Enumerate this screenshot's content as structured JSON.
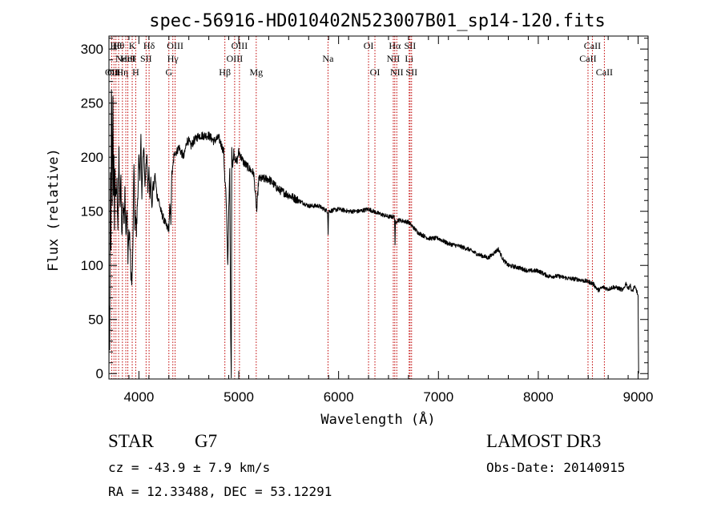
{
  "chart_data": {
    "type": "line",
    "title": "spec-56916-HD010402N523007B01_sp14-120.fits",
    "xlabel": "Wavelength (Å)",
    "ylabel": "Flux (relative)",
    "xlim": [
      3700,
      9100
    ],
    "ylim": [
      -5,
      312
    ],
    "x_ticks": [
      4000,
      5000,
      6000,
      7000,
      8000,
      9000
    ],
    "y_ticks": [
      0,
      50,
      100,
      150,
      200,
      250,
      300
    ],
    "series": [
      {
        "name": "flux",
        "x": [
          3700,
          3703,
          3708,
          3712,
          3716,
          3720,
          3724,
          3728,
          3732,
          3736,
          3740,
          3745,
          3750,
          3755,
          3760,
          3770,
          3780,
          3790,
          3800,
          3810,
          3820,
          3830,
          3840,
          3850,
          3860,
          3870,
          3880,
          3890,
          3900,
          3910,
          3920,
          3930,
          3935,
          3940,
          3945,
          3950,
          3960,
          3968,
          3975,
          3990,
          4000,
          4010,
          4020,
          4030,
          4040,
          4050,
          4060,
          4070,
          4080,
          4090,
          4100,
          4110,
          4120,
          4130,
          4140,
          4150,
          4160,
          4170,
          4180,
          4200,
          4220,
          4240,
          4260,
          4280,
          4300,
          4310,
          4320,
          4330,
          4340,
          4350,
          4360,
          4380,
          4400,
          4420,
          4450,
          4480,
          4500,
          4520,
          4550,
          4600,
          4650,
          4700,
          4750,
          4800,
          4850,
          4860,
          4870,
          4880,
          4890,
          4900,
          4910,
          4920,
          4925,
          4930,
          4940,
          4950,
          4960,
          4980,
          5000,
          5050,
          5100,
          5150,
          5180,
          5200,
          5250,
          5300,
          5400,
          5500,
          5600,
          5700,
          5800,
          5890,
          5895,
          5900,
          6000,
          6100,
          6200,
          6300,
          6400,
          6500,
          6560,
          6565,
          6570,
          6600,
          6700,
          6800,
          6900,
          7000,
          7100,
          7200,
          7300,
          7400,
          7500,
          7600,
          7650,
          7700,
          7800,
          7900,
          8000,
          8100,
          8200,
          8300,
          8400,
          8500,
          8550,
          8600,
          8650,
          8700,
          8750,
          8800,
          8850,
          8880,
          8900,
          8920,
          8940,
          8960,
          8980,
          9000,
          9005
        ],
        "y": [
          0,
          75,
          20,
          130,
          200,
          120,
          265,
          240,
          150,
          215,
          255,
          170,
          195,
          140,
          185,
          160,
          175,
          135,
          205,
          150,
          180,
          125,
          160,
          140,
          170,
          130,
          150,
          110,
          130,
          120,
          95,
          80,
          100,
          110,
          160,
          190,
          140,
          150,
          130,
          170,
          200,
          180,
          220,
          160,
          200,
          210,
          175,
          190,
          200,
          170,
          190,
          165,
          180,
          150,
          175,
          170,
          185,
          175,
          165,
          160,
          150,
          145,
          140,
          135,
          135,
          155,
          140,
          185,
          190,
          200,
          205,
          205,
          210,
          205,
          200,
          215,
          215,
          210,
          215,
          220,
          220,
          220,
          215,
          218,
          205,
          180,
          170,
          140,
          100,
          150,
          190,
          30,
          0,
          210,
          190,
          205,
          200,
          195,
          205,
          195,
          190,
          185,
          150,
          180,
          180,
          180,
          170,
          165,
          160,
          155,
          155,
          150,
          130,
          150,
          152,
          150,
          150,
          152,
          148,
          145,
          145,
          120,
          140,
          142,
          140,
          130,
          125,
          125,
          120,
          118,
          115,
          110,
          107,
          115,
          105,
          100,
          98,
          95,
          95,
          90,
          90,
          88,
          87,
          85,
          83,
          77,
          80,
          78,
          80,
          79,
          77,
          84,
          78,
          82,
          75,
          80,
          78,
          72,
          0
        ]
      }
    ],
    "lines": [
      {
        "x": 3727,
        "label": "OII",
        "row": 2
      },
      {
        "x": 3750,
        "label": "OII",
        "row": 2
      },
      {
        "x": 3770,
        "label": "Hθ",
        "row": 0
      },
      {
        "x": 3797,
        "label": "Hθ",
        "row": 0
      },
      {
        "x": 3835,
        "label": "Hη",
        "row": 2
      },
      {
        "x": 3869,
        "label": "NeIII",
        "row": 1
      },
      {
        "x": 3889,
        "label": "HeI",
        "row": 1
      },
      {
        "x": 3933,
        "label": "K",
        "row": 0
      },
      {
        "x": 3968,
        "label": "H",
        "row": 2
      },
      {
        "x": 4072,
        "label": "SII",
        "row": 1
      },
      {
        "x": 4102,
        "label": "Hδ",
        "row": 0
      },
      {
        "x": 4300,
        "label": "G",
        "row": 2
      },
      {
        "x": 4340,
        "label": "Hγ",
        "row": 1
      },
      {
        "x": 4363,
        "label": "OIII",
        "row": 0
      },
      {
        "x": 4861,
        "label": "Hβ",
        "row": 2
      },
      {
        "x": 4959,
        "label": "OIII",
        "row": 1
      },
      {
        "x": 5007,
        "label": "OIII",
        "row": 0
      },
      {
        "x": 5175,
        "label": "Mg",
        "row": 2
      },
      {
        "x": 5894,
        "label": "Na",
        "row": 1
      },
      {
        "x": 6300,
        "label": "OI",
        "row": 0
      },
      {
        "x": 6364,
        "label": "OI",
        "row": 2
      },
      {
        "x": 6548,
        "label": "NII",
        "row": 1
      },
      {
        "x": 6563,
        "label": "Hα",
        "row": 0
      },
      {
        "x": 6583,
        "label": "NII",
        "row": 2
      },
      {
        "x": 6707,
        "label": "Li",
        "row": 1
      },
      {
        "x": 6716,
        "label": "SII",
        "row": 0
      },
      {
        "x": 6731,
        "label": "SII",
        "row": 2
      },
      {
        "x": 8498,
        "label": "CaII",
        "row": 1
      },
      {
        "x": 8542,
        "label": "CaII",
        "row": 0
      },
      {
        "x": 8662,
        "label": "CaII",
        "row": 2
      }
    ]
  },
  "info": {
    "object_type": "STAR",
    "subclass": "G7",
    "survey": "LAMOST DR3",
    "cz": "cz = -43.9 ± 7.9 km/s",
    "obs_date": "Obs-Date: 20140915",
    "coords": "RA =  12.33488, DEC =  53.12291"
  }
}
